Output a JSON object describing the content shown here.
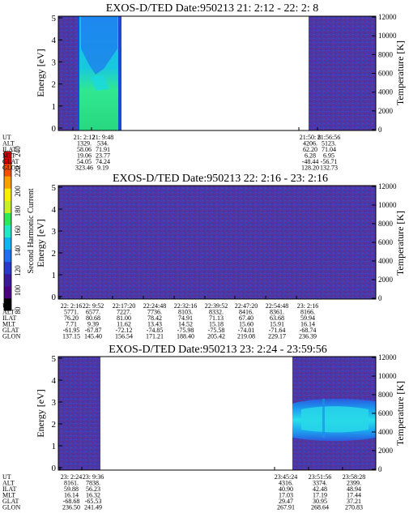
{
  "colorbar": {
    "label": "Second Harmonic Current",
    "ticks": [
      "80",
      "100",
      "120",
      "140",
      "160",
      "180",
      "200",
      "220",
      "240"
    ],
    "colors": [
      "#000000",
      "#4b0082",
      "#3a1a9a",
      "#2a3ac8",
      "#1f6ef0",
      "#12b4f0",
      "#22e8c8",
      "#2ee85a",
      "#c8f028",
      "#f8f000",
      "#f8a000",
      "#f05000",
      "#e00000"
    ]
  },
  "panels": [
    {
      "title": "EXOS-D/TED   Date:950213  21: 2:12 - 22: 2: 8",
      "ylabel": "Energy [eV]",
      "y2label": "Temperature [K]",
      "yticks": [
        "0",
        "1",
        "2",
        "3",
        "4",
        "5"
      ],
      "y2ticks": [
        "0",
        "2000",
        "4000",
        "6000",
        "8000",
        "10000",
        "12000"
      ],
      "row_labels": [
        "UT",
        "ALT",
        "ILAT",
        "MLT",
        "GLAT",
        "GLON"
      ],
      "columns": [
        [
          "21: 2:12",
          "1329.",
          "58.06",
          "19.06",
          "54.05",
          "323.46"
        ],
        [
          "21: 9:48",
          "534.",
          "71.91",
          "23.77",
          "74.24",
          "9.19"
        ],
        [
          "21:50: 8",
          "4206.",
          "62.20",
          "6.28",
          "-48.44",
          "128.20"
        ],
        [
          "21:56:56",
          "5123.",
          "71.04",
          "6.95",
          "-56.71",
          "132.73"
        ]
      ]
    },
    {
      "title": "EXOS-D/TED   Date:950213  22: 2:16 - 23: 2:16",
      "ylabel": "Energy [eV]",
      "y2label": "Temperature [K]",
      "yticks": [
        "0",
        "1",
        "2",
        "3",
        "4",
        "5"
      ],
      "y2ticks": [
        "0",
        "2000",
        "4000",
        "6000",
        "8000",
        "10000",
        "12000"
      ],
      "row_labels": [
        "UT",
        "ALT",
        "ILAT",
        "MLT",
        "GLAT",
        "GLON"
      ],
      "columns": [
        [
          "22: 2:16",
          "5771.",
          "76.20",
          "7.71",
          "-61.95",
          "137.15"
        ],
        [
          "22: 9:52",
          "6577.",
          "80.68",
          "9.39",
          "-67.87",
          "145.40"
        ],
        [
          "22:17:20",
          "7227.",
          "81.00",
          "11.62",
          "-72.12",
          "156.54"
        ],
        [
          "22:24:48",
          "7736.",
          "78.42",
          "13.43",
          "-74.85",
          "171.21"
        ],
        [
          "22:32:16",
          "8103.",
          "74.91",
          "14.52",
          "-75.98",
          "188.40"
        ],
        [
          "22:39:52",
          "8332.",
          "71.13",
          "15.18",
          "-75.58",
          "205.42"
        ],
        [
          "22:47:20",
          "8416.",
          "67.40",
          "15.60",
          "-74.01",
          "219.08"
        ],
        [
          "22:54:48",
          "8361.",
          "63.68",
          "15.91",
          "-71.64",
          "229.17"
        ],
        [
          "23: 2:16",
          "8166.",
          "59.94",
          "16.14",
          "-68.74",
          "236.39"
        ]
      ]
    },
    {
      "title": "EXOS-D/TED   Date:950213  23: 2:24 - 23:59:56",
      "ylabel": "Energy [eV]",
      "y2label": "Temperature [K]",
      "yticks": [
        "0",
        "1",
        "2",
        "3",
        "4",
        "5"
      ],
      "y2ticks": [
        "0",
        "2000",
        "4000",
        "6000",
        "8000",
        "10000",
        "12000"
      ],
      "row_labels": [
        "UT",
        "ALT",
        "ILAT",
        "MLT",
        "GLAT",
        "GLON"
      ],
      "columns": [
        [
          "23: 2:24",
          "8161.",
          "59.88",
          "16.14",
          "-68.68",
          "236.50"
        ],
        [
          "23: 9:36",
          "7838.",
          "56.23",
          "16.32",
          "-65.53",
          "241.49"
        ],
        [
          "23:45:24",
          "4316.",
          "40.90",
          "17.03",
          "29.47",
          "267.91"
        ],
        [
          "23:51:56",
          "3374.",
          "42.48",
          "17.19",
          "30.95",
          "268.64"
        ],
        [
          "23:58:28",
          "2399.",
          "48.94",
          "17.44",
          "37.21",
          "270.83"
        ]
      ]
    }
  ],
  "chart_data": [
    {
      "type": "heatmap",
      "title": "EXOS-D/TED   Date:950213  21: 2:12 - 22: 2: 8",
      "xlabel": "",
      "ylabel": "Energy [eV]",
      "y2label": "Temperature [K]",
      "ylim": [
        0,
        5
      ],
      "y2lim": [
        0,
        12000
      ],
      "x_ticks": [
        "21: 2:12",
        "21: 9:48",
        "21:50: 8",
        "21:56:56"
      ],
      "coverage": [
        {
          "from": "21: 2:12",
          "to": "21: 9:48",
          "fill": "low"
        },
        {
          "from": "21: 5:00",
          "to": "21: 9:00",
          "fill": "spectrum",
          "note": "high intensity 0-4 eV"
        },
        {
          "from": "21:50: 8",
          "to": "22: 2: 8",
          "fill": "low"
        }
      ],
      "gap": {
        "from": "21:10:30",
        "to": "21:50: 8"
      }
    },
    {
      "type": "heatmap",
      "title": "EXOS-D/TED   Date:950213  22: 2:16 - 23: 2:16",
      "xlabel": "",
      "ylabel": "Energy [eV]",
      "y2label": "Temperature [K]",
      "ylim": [
        0,
        5
      ],
      "y2lim": [
        0,
        12000
      ],
      "x_ticks": [
        "22: 2:16",
        "22: 9:52",
        "22:17:20",
        "22:24:48",
        "22:32:16",
        "22:39:52",
        "22:47:20",
        "22:54:48",
        "23: 2:16"
      ],
      "coverage": [
        {
          "from": "22: 2:16",
          "to": "23: 2:16",
          "fill": "low"
        }
      ]
    },
    {
      "type": "heatmap",
      "title": "EXOS-D/TED   Date:950213  23: 2:24 - 23:59:56",
      "xlabel": "",
      "ylabel": "Energy [eV]",
      "y2label": "Temperature [K]",
      "ylim": [
        0,
        5
      ],
      "y2lim": [
        0,
        12000
      ],
      "x_ticks": [
        "23: 2:24",
        "23: 9:36",
        "23:45:24",
        "23:51:56",
        "23:58:28"
      ],
      "coverage": [
        {
          "from": "23: 2:24",
          "to": "23: 9:36",
          "fill": "low"
        },
        {
          "from": "23:45:24",
          "to": "23:59:56",
          "fill": "low"
        },
        {
          "from": "23:45:24",
          "to": "23:59:56",
          "fill": "band",
          "note": "enhanced band 1.5-3 eV"
        }
      ],
      "gap": {
        "from": "23: 9:36",
        "to": "23:45:24"
      }
    }
  ]
}
